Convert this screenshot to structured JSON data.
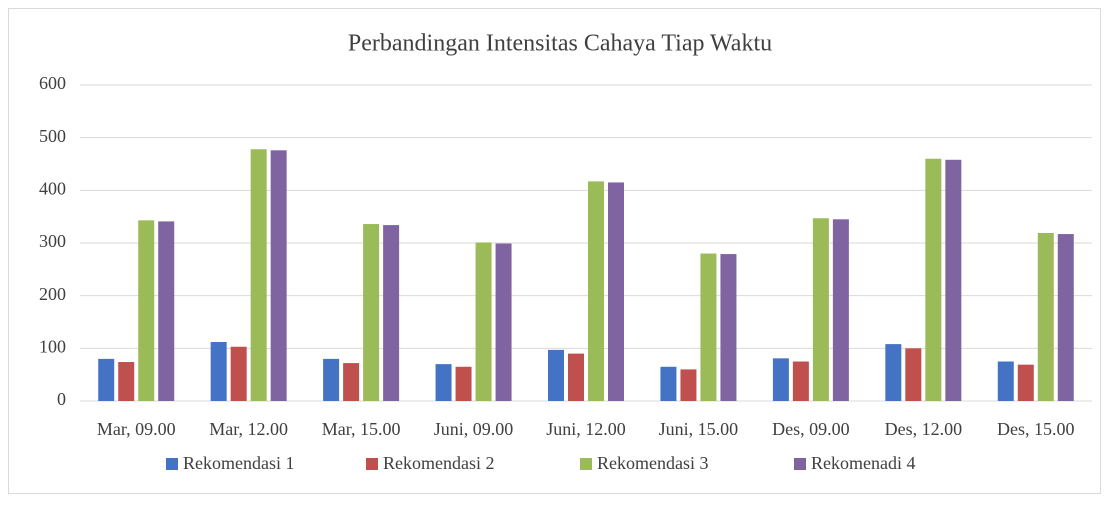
{
  "chart_data": {
    "type": "bar",
    "title": "Perbandingan Intensitas Cahaya Tiap Waktu",
    "categories": [
      "Mar, 09.00",
      "Mar, 12.00",
      "Mar, 15.00",
      "Juni, 09.00",
      "Juni, 12.00",
      "Juni, 15.00",
      "Des, 09.00",
      "Des, 12.00",
      "Des, 15.00"
    ],
    "series": [
      {
        "name": "Rekomendasi 1",
        "color": "#4472c4",
        "values": [
          80,
          112,
          80,
          70,
          97,
          65,
          81,
          108,
          75
        ]
      },
      {
        "name": "Rekomendasi 2",
        "color": "#c0504d",
        "values": [
          74,
          103,
          72,
          65,
          90,
          60,
          75,
          100,
          69
        ]
      },
      {
        "name": "Rekomendasi 3",
        "color": "#9bbb59",
        "values": [
          343,
          478,
          336,
          301,
          417,
          280,
          347,
          460,
          319
        ]
      },
      {
        "name": "Rekomenadi 4",
        "color": "#8064a2",
        "values": [
          341,
          476,
          334,
          299,
          415,
          279,
          345,
          458,
          317
        ]
      }
    ],
    "ylim": [
      0,
      600
    ],
    "yticks": [
      0,
      100,
      200,
      300,
      400,
      500,
      600
    ],
    "grid": true,
    "legend": "bottom"
  }
}
